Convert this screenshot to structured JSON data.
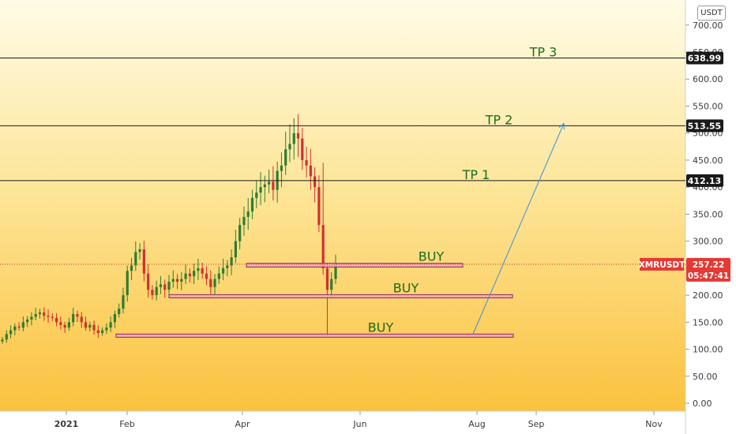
{
  "chart_data": {
    "type": "candlestick",
    "symbol": "XMRUSDT",
    "currency": "USDT",
    "y_axis": {
      "min": 0,
      "max": 700,
      "ticks": [
        "700.00",
        "650.00",
        "600.00",
        "550.00",
        "500.00",
        "450.00",
        "400.00",
        "350.00",
        "300.00",
        "250.00",
        "200.00",
        "150.00",
        "100.00",
        "50.00",
        "0.00"
      ]
    },
    "x_axis": {
      "labels": [
        "2021",
        "Feb",
        "Apr",
        "Jun",
        "Aug",
        "Sep",
        "Nov"
      ]
    },
    "price_lines": [
      {
        "value": 638.99,
        "label": "638.99",
        "annotation": "TP 3"
      },
      {
        "value": 513.55,
        "label": "513.55",
        "annotation": "TP 2"
      },
      {
        "value": 412.13,
        "label": "412.13",
        "annotation": "TP 1"
      }
    ],
    "buy_zones": [
      {
        "low": 252,
        "high": 259,
        "annotation": "BUY"
      },
      {
        "low": 195,
        "high": 201,
        "annotation": "BUY"
      },
      {
        "low": 124,
        "high": 128,
        "annotation": "BUY"
      }
    ],
    "current_price": {
      "value": 257.22,
      "label": "257.22",
      "countdown": "05:47:41"
    },
    "projection": {
      "from": 128,
      "to": 518
    },
    "series": [
      {
        "name": "XMRUSDT",
        "close_approx": [
          118,
          128,
          135,
          142,
          140,
          150,
          155,
          160,
          165,
          168,
          162,
          160,
          158,
          150,
          145,
          140,
          150,
          165,
          160,
          150,
          140,
          145,
          135,
          130,
          135,
          140,
          150,
          165,
          175,
          200,
          245,
          255,
          280,
          285,
          240,
          210,
          200,
          215,
          220,
          210,
          225,
          230,
          225,
          230,
          240,
          235,
          245,
          250,
          240,
          230,
          215,
          230,
          240,
          250,
          255,
          270,
          300,
          330,
          345,
          355,
          380,
          390,
          400,
          405,
          410,
          395,
          430,
          440,
          470,
          480,
          500,
          490,
          450,
          440,
          420,
          400,
          330,
          250,
          210,
          230,
          257
        ]
      }
    ]
  }
}
